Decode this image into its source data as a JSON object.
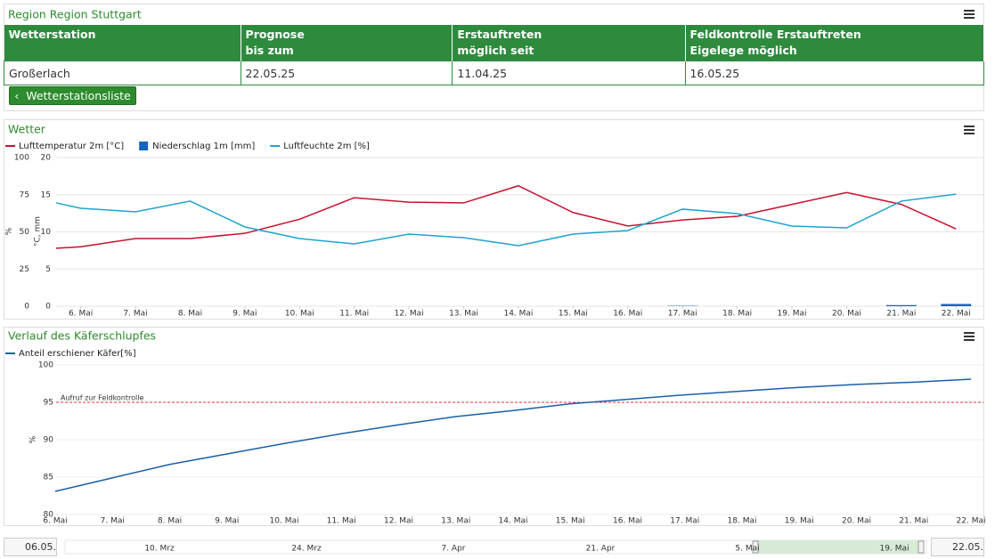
{
  "panel": {
    "title": "Region Region Stuttgart",
    "table": {
      "header": [
        "Wetterstation",
        "Prognose\nbis zum",
        "Erstauftreten\nmöglich seit",
        "Feldkontrolle Erstauftreten\nEigelege möglich"
      ],
      "rows": [
        [
          "Großerlach",
          "22.05.25",
          "11.04.25",
          "16.05.25"
        ]
      ]
    },
    "button": "Wetterstationsliste"
  },
  "chart_data": [
    {
      "type": "line",
      "title": "Wetter",
      "x": [
        5.55,
        6,
        7,
        8,
        9,
        10,
        11,
        12,
        13,
        14,
        15,
        16,
        17,
        18,
        19,
        20,
        21,
        22
      ],
      "xlim": [
        5.55,
        22.5
      ],
      "xticks": [
        {
          "value": 6,
          "label": "6. Mai"
        },
        {
          "value": 7,
          "label": "7. Mai"
        },
        {
          "value": 8,
          "label": "8. Mai"
        },
        {
          "value": 9,
          "label": "9. Mai"
        },
        {
          "value": 10,
          "label": "10. Mai"
        },
        {
          "value": 11,
          "label": "11. Mai"
        },
        {
          "value": 12,
          "label": "12. Mai"
        },
        {
          "value": 13,
          "label": "13. Mai"
        },
        {
          "value": 14,
          "label": "14. Mai"
        },
        {
          "value": 15,
          "label": "15. Mai"
        },
        {
          "value": 16,
          "label": "16. Mai"
        },
        {
          "value": 17,
          "label": "17. Mai"
        },
        {
          "value": 18,
          "label": "18. Mai"
        },
        {
          "value": 19,
          "label": "19. Mai"
        },
        {
          "value": 20,
          "label": "20. Mai"
        },
        {
          "value": 21,
          "label": "21. Mai"
        },
        {
          "value": 22,
          "label": "22. Mai"
        }
      ],
      "ylabel": "%",
      "ylim": [
        0,
        100
      ],
      "yticks": [
        0,
        25,
        50,
        75,
        100
      ],
      "y2label": "°C, mm",
      "y2lim": [
        0,
        20
      ],
      "y2ticks": [
        0,
        5,
        10,
        15,
        20
      ],
      "grid": true,
      "series": [
        {
          "name": "Lufttemperatur 2m [°C]",
          "type": "line",
          "axis": "y2",
          "color": "#c8102e",
          "values": [
            7.8,
            8.0,
            9.1,
            9.1,
            9.8,
            11.7,
            14.6,
            14.0,
            13.9,
            16.2,
            12.6,
            10.8,
            11.6,
            12.1,
            13.7,
            15.3,
            13.7,
            10.4
          ]
        },
        {
          "name": "Niederschlag 1m [mm]",
          "type": "bar",
          "axis": "y2",
          "color": "#1565c0",
          "values": [
            0,
            0,
            0,
            0,
            0,
            0,
            0,
            0,
            0,
            0,
            0,
            0,
            0.05,
            0,
            0,
            0,
            0.15,
            0.3
          ]
        },
        {
          "name": "Luftfeuchte 2m [%]",
          "type": "line",
          "color": "#1fa3d0",
          "values": [
            69.5,
            65.9,
            63.5,
            70.7,
            53.3,
            45.5,
            41.9,
            48.5,
            46.1,
            40.7,
            48.5,
            50.9,
            65.3,
            62.3,
            53.9,
            52.7,
            70.7,
            75.4
          ]
        }
      ]
    },
    {
      "type": "line",
      "title": "Verlauf des Käferschlupfes",
      "categories": [
        "6. Mai",
        "7. Mai",
        "8. Mai",
        "9. Mai",
        "10. Mai",
        "11. Mai",
        "12. Mai",
        "13. Mai",
        "14. Mai",
        "15. Mai",
        "16. Mai",
        "17. Mai",
        "18. Mai",
        "19. Mai",
        "20. Mai",
        "21. Mai",
        "22. Mai"
      ],
      "ylabel": "%",
      "ylim": [
        80,
        100
      ],
      "yticks": [
        80,
        85,
        90,
        95,
        100
      ],
      "grid": true,
      "series": [
        {
          "name": "Anteil erschiener Käfer[%]",
          "color": "#1a5fa8",
          "values": [
            83.1,
            84.9,
            86.7,
            88.1,
            89.5,
            90.8,
            92.0,
            93.1,
            93.9,
            94.8,
            95.4,
            96.0,
            96.5,
            97.0,
            97.4,
            97.7,
            98.1
          ]
        }
      ],
      "annotations": [
        {
          "text": "Aufruf zur Feldkontrolle",
          "value": 95,
          "color": "#e03040"
        }
      ]
    }
  ],
  "navigator": {
    "start": "06.05.",
    "end": "22.05.",
    "labels": [
      "10. Mrz",
      "24. Mrz",
      "7. Apr",
      "21. Apr",
      "5. Mai",
      "19. Mai"
    ]
  }
}
